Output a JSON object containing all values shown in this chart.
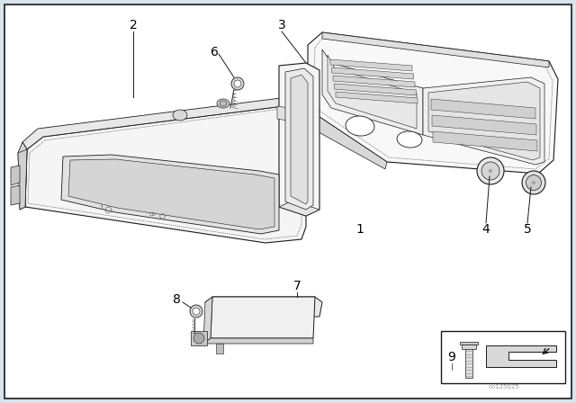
{
  "bg_color": "#d8e4ec",
  "panel_bg": "#ffffff",
  "line_color": "#1a1a1a",
  "label_color": "#000000",
  "watermark": "co125025",
  "border_lw": 1.0,
  "part_lw": 0.7
}
